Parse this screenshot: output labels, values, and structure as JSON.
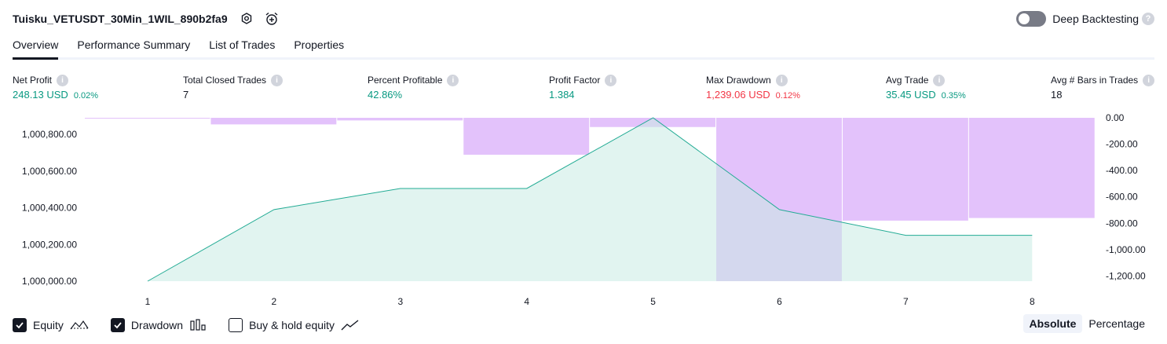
{
  "header": {
    "title": "Tuisku_VETUSDT_30Min_1WIL_890b2fa9",
    "deep_backtesting_label": "Deep Backtesting",
    "help_glyph": "?"
  },
  "tabs": [
    {
      "label": "Overview",
      "active": true
    },
    {
      "label": "Performance Summary",
      "active": false
    },
    {
      "label": "List of Trades",
      "active": false
    },
    {
      "label": "Properties",
      "active": false
    }
  ],
  "stats": [
    {
      "label": "Net Profit",
      "value": "248.13 USD",
      "pct": "0.02%",
      "tone": "green"
    },
    {
      "label": "Total Closed Trades",
      "value": "7",
      "pct": "",
      "tone": "dark"
    },
    {
      "label": "Percent Profitable",
      "value": "42.86%",
      "pct": "",
      "tone": "green"
    },
    {
      "label": "Profit Factor",
      "value": "1.384",
      "pct": "",
      "tone": "green"
    },
    {
      "label": "Max Drawdown",
      "value": "1,239.06 USD",
      "pct": "0.12%",
      "tone": "red"
    },
    {
      "label": "Avg Trade",
      "value": "35.45 USD",
      "pct": "0.35%",
      "tone": "green"
    },
    {
      "label": "Avg # Bars in Trades",
      "value": "18",
      "pct": "",
      "tone": "dark"
    }
  ],
  "chart_data": {
    "type": "area",
    "x": [
      1,
      2,
      3,
      4,
      5,
      6,
      7,
      8
    ],
    "series": [
      {
        "name": "Equity",
        "axis": "left",
        "values": [
          1000000.0,
          1000390.0,
          1000505.0,
          1000505.0,
          1000890.0,
          1000390.0,
          1000250.0,
          1000250.0
        ]
      },
      {
        "name": "Drawdown",
        "axis": "right",
        "values": [
          0,
          -50,
          -20,
          -280,
          -70,
          -1239.06,
          -780,
          -760
        ]
      }
    ],
    "left_ticks": [
      "1,000,000.00",
      "1,000,200.00",
      "1,000,400.00",
      "1,000,600.00",
      "1,000,800.00"
    ],
    "left_tick_values": [
      1000000,
      1000200,
      1000400,
      1000600,
      1000800
    ],
    "right_ticks": [
      "0.00",
      "-200.00",
      "-400.00",
      "-600.00",
      "-800.00",
      "-1,000.00",
      "-1,200.00"
    ],
    "right_tick_values": [
      0,
      -200,
      -400,
      -600,
      -800,
      -1000,
      -1200
    ],
    "x_ticks": [
      "1",
      "2",
      "3",
      "4",
      "5",
      "6",
      "7",
      "8"
    ],
    "colors": {
      "equity_line": "#22ab94",
      "equity_fill": "#c8ebe3",
      "drawdown_bar": "#e1bffb",
      "drawdown_border": "#ce93f8"
    }
  },
  "footer": {
    "legend": [
      {
        "label": "Equity",
        "checked": true,
        "icon": "equity-line-icon"
      },
      {
        "label": "Drawdown",
        "checked": true,
        "icon": "drawdown-bars-icon"
      },
      {
        "label": "Buy & hold equity",
        "checked": false,
        "icon": "buy-hold-line-icon"
      }
    ],
    "modes": [
      {
        "label": "Absolute",
        "active": true
      },
      {
        "label": "Percentage",
        "active": false
      }
    ]
  }
}
